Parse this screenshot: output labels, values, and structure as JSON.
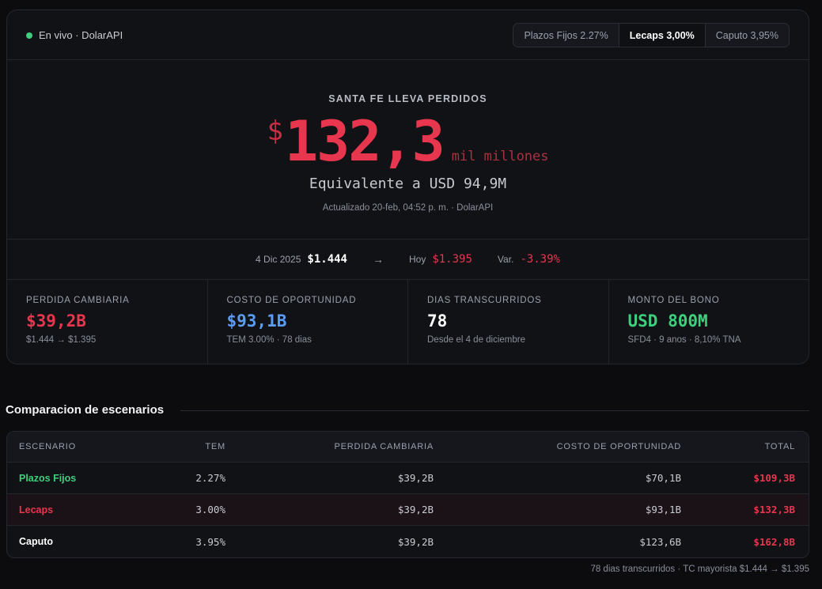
{
  "status": {
    "label": "En vivo · DolarAPI",
    "dot_color": "#3ecf7d"
  },
  "tabs": [
    {
      "label": "Plazos Fijos 2.27%",
      "active": false
    },
    {
      "label": "Lecaps 3,00%",
      "active": true
    },
    {
      "label": "Caputo 3,95%",
      "active": false
    }
  ],
  "hero": {
    "label": "SANTA FE LLEVA PERDIDOS",
    "currency": "$",
    "value": "132,3",
    "unit": "mil millones",
    "usd": "Equivalente a USD 94,9M",
    "updated": "Actualizado 20-feb, 04:52 p. m. · DolarAPI"
  },
  "rate": {
    "from_label": "4 Dic 2025",
    "from_value": "$1.444",
    "arrow": "→",
    "today_label": "Hoy",
    "today_value": "$1.395",
    "var_label": "Var.",
    "var_value": "-3.39%"
  },
  "stats": [
    {
      "label": "PERDIDA CAMBIARIA",
      "value": "$39,2B",
      "sub": "$1.444 → $1.395",
      "color": "#e8364e"
    },
    {
      "label": "COSTO DE OPORTUNIDAD",
      "value": "$93,1B",
      "sub": "TEM 3.00% · 78 dias",
      "color": "#5b9cf5"
    },
    {
      "label": "DIAS TRANSCURRIDOS",
      "value": "78",
      "sub": "Desde el 4 de diciembre",
      "color": "#ffffff"
    },
    {
      "label": "MONTO DEL BONO",
      "value": "USD 800M",
      "sub": "SFD4 · 9 anos · 8,10% TNA",
      "color": "#3ecf7d"
    }
  ],
  "comparison": {
    "title": "Comparacion de escenarios",
    "headers": [
      "ESCENARIO",
      "TEM",
      "PERDIDA CAMBIARIA",
      "COSTO DE OPORTUNIDAD",
      "TOTAL"
    ],
    "rows": [
      {
        "name": "Plazos Fijos",
        "tem": "2.27%",
        "perdida": "$39,2B",
        "costo": "$70,1B",
        "total": "$109,3B",
        "name_color": "#3ecf7d"
      },
      {
        "name": "Lecaps",
        "tem": "3.00%",
        "perdida": "$39,2B",
        "costo": "$93,1B",
        "total": "$132,3B",
        "name_color": "#e8364e"
      },
      {
        "name": "Caputo",
        "tem": "3.95%",
        "perdida": "$39,2B",
        "costo": "$123,6B",
        "total": "$162,8B",
        "name_color": "#ffffff"
      }
    ]
  },
  "footnote": "78 dias transcurridos · TC mayorista $1.444 → $1.395"
}
